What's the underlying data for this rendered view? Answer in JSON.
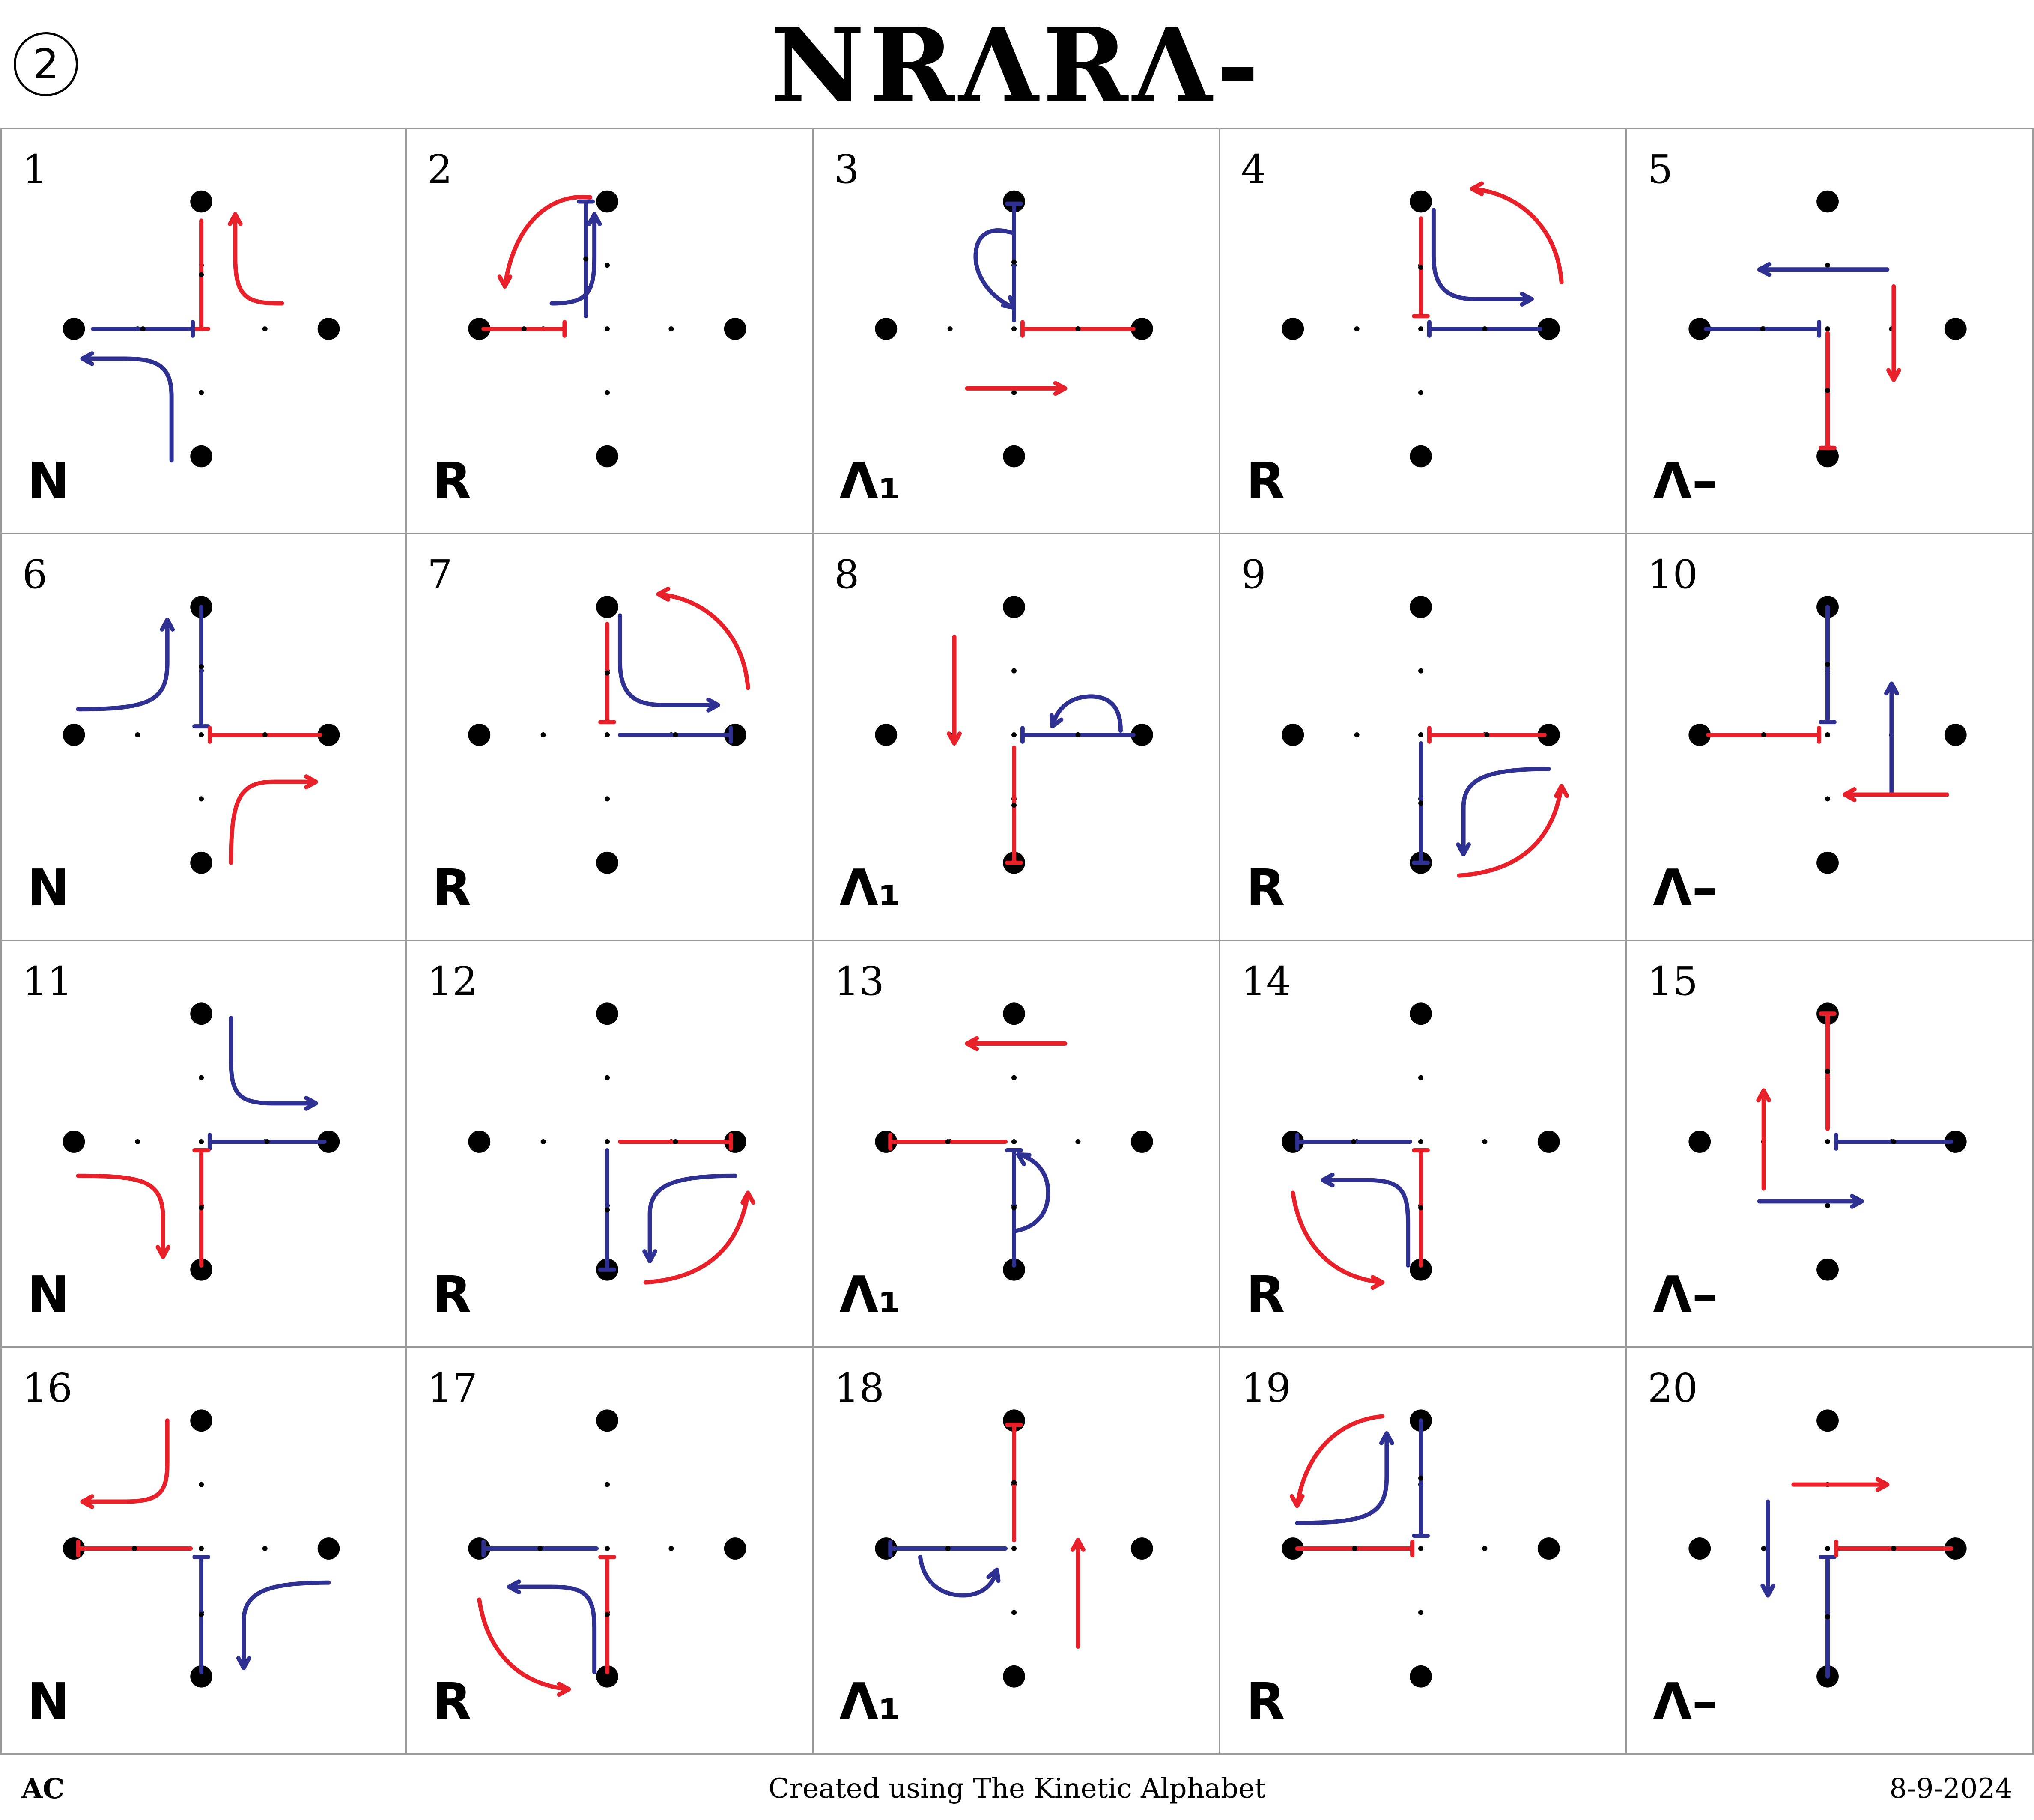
{
  "header": {
    "badge": "2",
    "title": "NRΛRΛ-"
  },
  "colors": {
    "red": "#e8202a",
    "blue": "#2e3192",
    "dot": "#000000",
    "grid_line": "#9a9a9a"
  },
  "cells": [
    {
      "number": "1",
      "label": "N"
    },
    {
      "number": "2",
      "label": "R"
    },
    {
      "number": "3",
      "label": "Λ₁"
    },
    {
      "number": "4",
      "label": "R"
    },
    {
      "number": "5",
      "label": "Λ–"
    },
    {
      "number": "6",
      "label": "N"
    },
    {
      "number": "7",
      "label": "R"
    },
    {
      "number": "8",
      "label": "Λ₁"
    },
    {
      "number": "9",
      "label": "R"
    },
    {
      "number": "10",
      "label": "Λ–"
    },
    {
      "number": "11",
      "label": "N"
    },
    {
      "number": "12",
      "label": "R"
    },
    {
      "number": "13",
      "label": "Λ₁"
    },
    {
      "number": "14",
      "label": "R"
    },
    {
      "number": "15",
      "label": "Λ–"
    },
    {
      "number": "16",
      "label": "N"
    },
    {
      "number": "17",
      "label": "R"
    },
    {
      "number": "18",
      "label": "Λ₁"
    },
    {
      "number": "19",
      "label": "R"
    },
    {
      "number": "20",
      "label": "Λ–"
    }
  ],
  "footer": {
    "left": "AC",
    "center": "Created using The Kinetic Alphabet",
    "right": "8-9-2024"
  }
}
